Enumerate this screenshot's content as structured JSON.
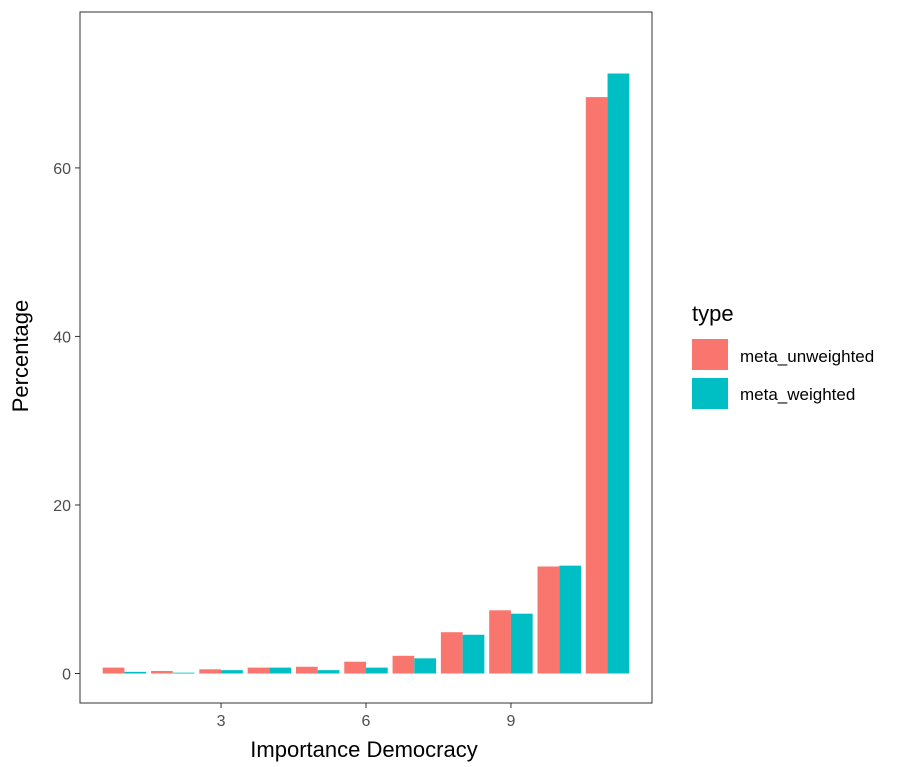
{
  "chart_data": {
    "type": "bar",
    "xlabel": "Importance Democracy",
    "ylabel": "Percentage",
    "x": [
      1,
      2,
      3,
      4,
      5,
      6,
      7,
      8,
      9,
      10,
      11
    ],
    "x_ticks": [
      3,
      6,
      9
    ],
    "y_ticks": [
      0,
      20,
      40,
      60
    ],
    "xlim": [
      0.08,
      11.92
    ],
    "ylim": [
      -3.5,
      78.5
    ],
    "grid": false,
    "legend": {
      "title": "type",
      "position": "right"
    },
    "series": [
      {
        "name": "meta_unweighted",
        "color": "#F8766D",
        "values": [
          0.7,
          0.3,
          0.5,
          0.7,
          0.8,
          1.4,
          2.1,
          4.9,
          7.5,
          12.7,
          68.4
        ]
      },
      {
        "name": "meta_weighted",
        "color": "#00BFC4",
        "values": [
          0.2,
          0.1,
          0.4,
          0.7,
          0.4,
          0.7,
          1.8,
          4.6,
          7.1,
          12.8,
          71.2
        ]
      }
    ]
  }
}
